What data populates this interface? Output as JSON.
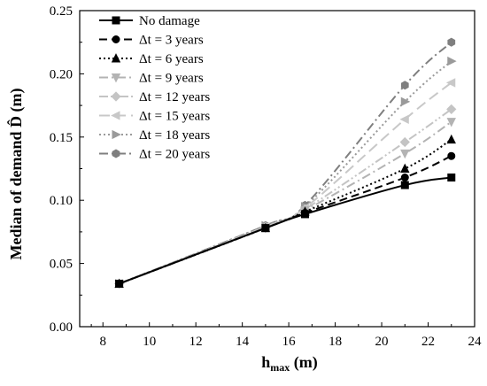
{
  "chart_data": {
    "type": "line",
    "title": "",
    "xlabel": {
      "main": "h",
      "sub": "max",
      "unit": " (m)"
    },
    "ylabel": "Median of demand D̂ (m)",
    "xlim": [
      7,
      24
    ],
    "ylim": [
      0,
      0.25
    ],
    "xticks": [
      "8",
      "10",
      "12",
      "14",
      "16",
      "18",
      "20",
      "22",
      "24"
    ],
    "yticks": [
      "0.00",
      "0.05",
      "0.10",
      "0.15",
      "0.20",
      "0.25"
    ],
    "legend_position": "top-left",
    "x": [
      8.7,
      15.0,
      16.7,
      21.0,
      23.0
    ],
    "series": [
      {
        "name": "No damage",
        "color": "#000000",
        "marker": "square",
        "dash": "solid",
        "values": [
          0.034,
          0.078,
          0.089,
          0.112,
          0.118
        ]
      },
      {
        "name": "Δt = 3 years",
        "color": "#000000",
        "marker": "circle",
        "dash": "dash",
        "values": [
          0.034,
          0.078,
          0.09,
          0.118,
          0.135
        ]
      },
      {
        "name": "Δt = 6 years",
        "color": "#000000",
        "marker": "triangle-up",
        "dash": "dot",
        "values": [
          0.034,
          0.078,
          0.091,
          0.125,
          0.148
        ]
      },
      {
        "name": "Δt = 9 years",
        "color": "#b3b3b3",
        "marker": "triangle-down",
        "dash": "dashdot",
        "values": [
          0.034,
          0.078,
          0.092,
          0.137,
          0.162
        ]
      },
      {
        "name": "Δt = 12 years",
        "color": "#c4c4c4",
        "marker": "diamond",
        "dash": "dashdotdot",
        "values": [
          0.034,
          0.079,
          0.093,
          0.146,
          0.172
        ]
      },
      {
        "name": "Δt = 15 years",
        "color": "#c8c8c8",
        "marker": "triangle-left",
        "dash": "longdash",
        "values": [
          0.034,
          0.079,
          0.094,
          0.164,
          0.193
        ]
      },
      {
        "name": "Δt = 18 years",
        "color": "#9a9a9a",
        "marker": "triangle-right",
        "dash": "dot",
        "values": [
          0.034,
          0.08,
          0.095,
          0.178,
          0.21
        ]
      },
      {
        "name": "Δt = 20 years",
        "color": "#7f7f7f",
        "marker": "hexagon",
        "dash": "dashdot",
        "values": [
          0.034,
          0.08,
          0.096,
          0.191,
          0.225
        ]
      }
    ]
  }
}
